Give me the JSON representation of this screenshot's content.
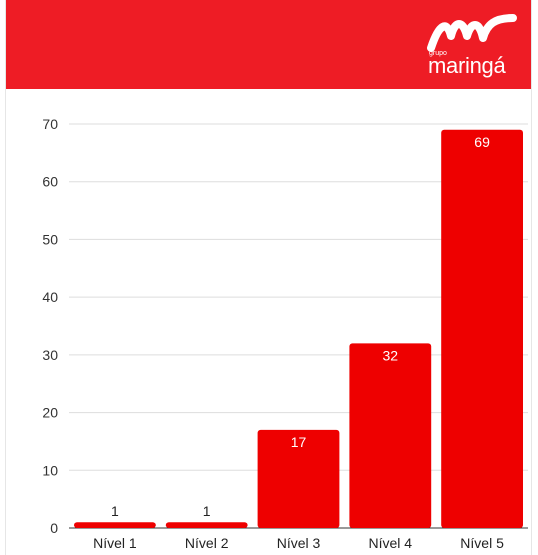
{
  "brand": {
    "small_text": "grupo",
    "name": "maringá",
    "header_color": "#ee1c25"
  },
  "chart_data": {
    "type": "bar",
    "categories": [
      "Nível 1",
      "Nível 2",
      "Nível 3",
      "Nível 4",
      "Nível 5"
    ],
    "values": [
      1,
      1,
      17,
      32,
      69
    ],
    "data_labels": [
      "1",
      "1",
      "17",
      "32",
      "69"
    ],
    "title": "",
    "xlabel": "",
    "ylabel": "",
    "ylim": [
      0,
      70
    ],
    "yticks": [
      0,
      10,
      20,
      30,
      40,
      50,
      60,
      70
    ],
    "grid": true,
    "legend": "none",
    "bar_color": "#ee0000"
  }
}
